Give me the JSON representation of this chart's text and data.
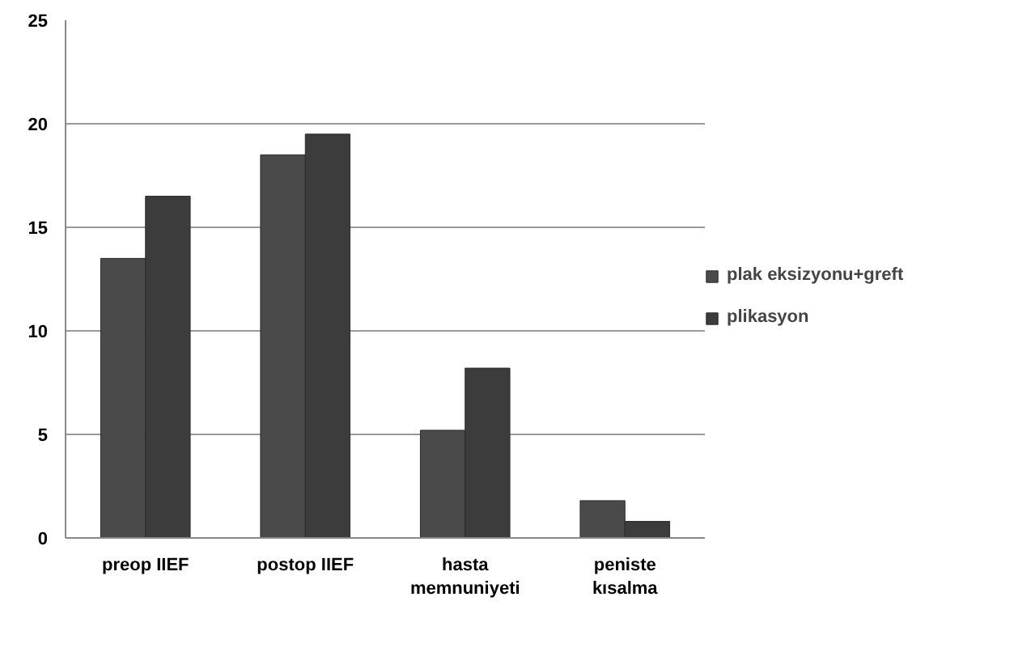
{
  "chart_data": {
    "type": "bar",
    "categories": [
      "preop IIEF",
      "postop IIEF",
      "hasta memnuniyeti",
      "peniste kısalma"
    ],
    "series": [
      {
        "name": "plak eksizyonu+greft",
        "color": "#4a4a4a",
        "values": [
          13.5,
          18.5,
          5.2,
          1.8
        ]
      },
      {
        "name": "plikasyon",
        "color": "#3c3c3c",
        "values": [
          16.5,
          19.5,
          8.2,
          0.8
        ]
      }
    ],
    "ylim": [
      0,
      25
    ],
    "yticks": [
      0,
      5,
      10,
      15,
      20,
      25
    ],
    "grid": "y",
    "legend": "right"
  }
}
